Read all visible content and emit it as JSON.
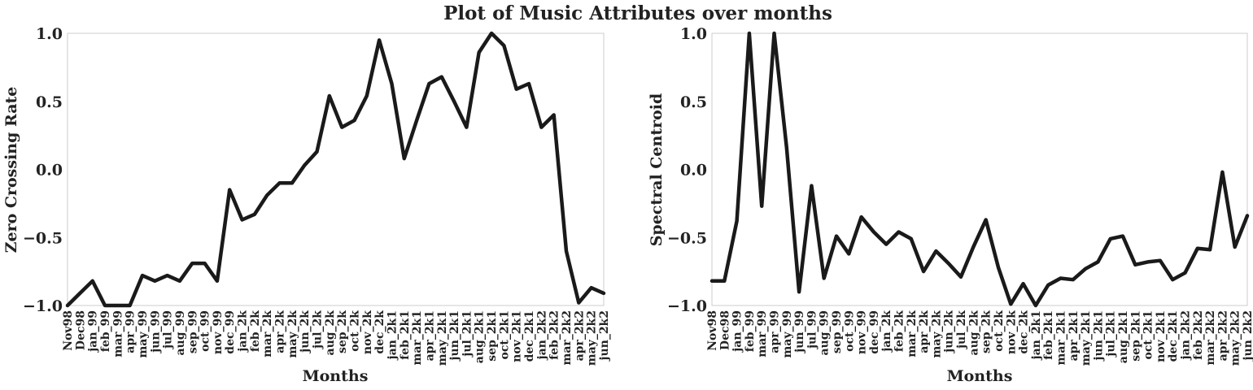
{
  "title": "Plot of Music Attributes over months",
  "chart_data": [
    {
      "type": "line",
      "xlabel": "Months",
      "ylabel": "Zero Crossing Rate",
      "ylim": [
        -1.0,
        1.0
      ],
      "yticks": [
        "−1.0",
        "−0.5",
        "0.0",
        "0.5",
        "1.0"
      ],
      "grid": false,
      "line_color": "#1a1a1a",
      "categories": [
        "Nov98",
        "Dec98",
        "jan_99",
        "feb_99",
        "mar_99",
        "apr_99",
        "may_99",
        "jun_99",
        "jul_99",
        "aug_99",
        "sep_99",
        "oct_99",
        "nov_99",
        "dec_99",
        "jan_2k",
        "feb_2k",
        "mar_2k",
        "apr_2k",
        "may_2k",
        "jun_2k",
        "jul_2k",
        "aug_2k",
        "sep_2k",
        "oct_2k",
        "nov_2k",
        "dec_2k",
        "jan_2k1",
        "feb_2k1",
        "mar_2k1",
        "apr_2k1",
        "may_2k1",
        "jun_2k1",
        "jul_2k1",
        "aug_2k1",
        "sep_2k1",
        "oct_2k1",
        "nov_2k1",
        "dec_2k1",
        "jan_2k2",
        "feb_2k2",
        "mar_2k2",
        "apr_2k2",
        "may_2k2",
        "jun_2k2"
      ],
      "values": [
        -1.0,
        -0.91,
        -0.82,
        -1.0,
        -1.0,
        -1.0,
        -0.78,
        -0.82,
        -0.78,
        -0.82,
        -0.69,
        -0.69,
        -0.82,
        -0.15,
        -0.37,
        -0.33,
        -0.19,
        -0.1,
        -0.1,
        0.03,
        0.13,
        0.54,
        0.31,
        0.36,
        0.54,
        0.95,
        0.63,
        0.08,
        0.36,
        0.63,
        0.68,
        0.5,
        0.31,
        0.86,
        1.0,
        0.91,
        0.59,
        0.63,
        0.31,
        0.4,
        -0.6,
        -0.98,
        -0.87,
        -0.91
      ]
    },
    {
      "type": "line",
      "xlabel": "Months",
      "ylabel": "Spectral Centroid",
      "ylim": [
        -1.0,
        1.0
      ],
      "yticks": [
        "−1.0",
        "−0.5",
        "0.0",
        "0.5",
        "1.0"
      ],
      "grid": false,
      "line_color": "#1a1a1a",
      "categories": [
        "Nov98",
        "Dec98",
        "jan_99",
        "feb_99",
        "mar_99",
        "apr_99",
        "may_99",
        "jun_99",
        "jul_99",
        "aug_99",
        "sep_99",
        "oct_99",
        "nov_99",
        "dec_99",
        "jan_2k",
        "feb_2k",
        "mar_2k",
        "apr_2k",
        "may_2k",
        "jun_2k",
        "jul_2k",
        "aug_2k",
        "sep_2k",
        "oct_2k",
        "nov_2k",
        "dec_2k",
        "jan_2k1",
        "feb_2k1",
        "mar_2k1",
        "apr_2k1",
        "may_2k1",
        "jun_2k1",
        "jul_2k1",
        "aug_2k1",
        "sep_2k1",
        "oct_2k1",
        "nov_2k1",
        "dec_2k1",
        "jan_2k2",
        "feb_2k2",
        "mar_2k2",
        "apr_2k2",
        "may_2k2",
        "jun_2k2"
      ],
      "values": [
        -0.82,
        -0.82,
        -0.38,
        1.0,
        -0.27,
        1.0,
        0.16,
        -0.9,
        -0.12,
        -0.8,
        -0.49,
        -0.62,
        -0.35,
        -0.46,
        -0.55,
        -0.46,
        -0.51,
        -0.75,
        -0.6,
        -0.69,
        -0.79,
        -0.57,
        -0.37,
        -0.72,
        -0.99,
        -0.84,
        -1.0,
        -0.85,
        -0.8,
        -0.81,
        -0.73,
        -0.68,
        -0.51,
        -0.49,
        -0.7,
        -0.68,
        -0.67,
        -0.81,
        -0.76,
        -0.58,
        -0.59,
        -0.02,
        -0.57,
        -0.34
      ]
    }
  ]
}
